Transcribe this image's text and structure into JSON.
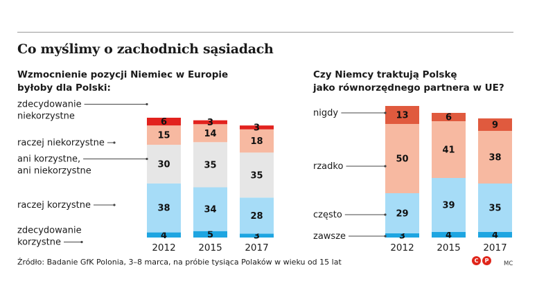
{
  "headline": "Co myślimy o zachodnich sąsiadach",
  "source": "Źródło: Badanie GfK Polonia, 3–8 marca, na próbie tysiąca Polaków w wieku od 15 lat",
  "logo": {
    "glyph_1": "C",
    "glyph_2": "P",
    "icon": "copyright-logo-icon"
  },
  "author": "MC",
  "chart_data": [
    {
      "type": "bar",
      "stacked": true,
      "title": "Wzmocnienie pozycji Niemiec w Europie\nbyłoby dla Polski:",
      "categories": [
        "2012",
        "2015",
        "2017"
      ],
      "series": [
        {
          "name": "zdecydowanie\nkorzystne",
          "color": "#1ea5e1",
          "values": [
            4,
            5,
            3
          ]
        },
        {
          "name": "raczej korzystne",
          "color": "#a6dcf7",
          "values": [
            38,
            34,
            28
          ]
        },
        {
          "name": "ani korzystne,\nani niekorzystne",
          "color": "#e6e6e6",
          "values": [
            30,
            35,
            35
          ]
        },
        {
          "name": "raczej niekorzystne",
          "color": "#f7b9a1",
          "values": [
            15,
            14,
            18
          ]
        },
        {
          "name": "zdecydowanie\nniekorzystne",
          "color": "#e2221e",
          "values": [
            6,
            3,
            3
          ]
        }
      ],
      "legend_placement": "left",
      "grid": false
    },
    {
      "type": "bar",
      "stacked": true,
      "title": "Czy Niemcy traktują Polskę\njako równorzędnego partnera w UE?",
      "categories": [
        "2012",
        "2015",
        "2017"
      ],
      "series": [
        {
          "name": "zawsze",
          "color": "#1ea5e1",
          "values": [
            3,
            4,
            4
          ]
        },
        {
          "name": "często",
          "color": "#a6dcf7",
          "values": [
            29,
            39,
            35
          ]
        },
        {
          "name": "rzadko",
          "color": "#f7b9a1",
          "values": [
            50,
            41,
            38
          ]
        },
        {
          "name": "nigdy",
          "color": "#e05a3e",
          "values": [
            13,
            6,
            9
          ]
        }
      ],
      "legend_placement": "left",
      "grid": false
    }
  ]
}
